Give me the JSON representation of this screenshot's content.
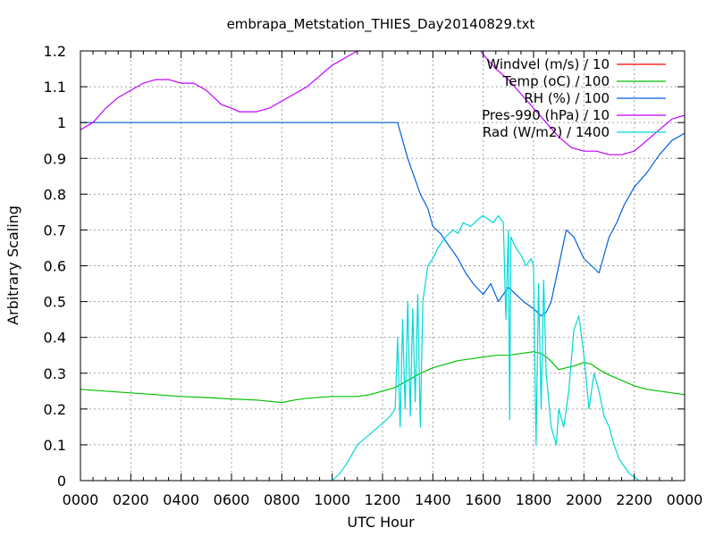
{
  "chart_data": {
    "type": "line",
    "title": "embrapa_Metstation_THIES_Day20140829.txt",
    "xlabel": "UTC Hour",
    "ylabel": "Arbitrary Scaling",
    "xlim": [
      0,
      24
    ],
    "ylim": [
      0,
      1.2
    ],
    "grid": true,
    "legend_position": "top-right",
    "x_ticks": [
      {
        "value": 0,
        "label": "0000"
      },
      {
        "value": 2,
        "label": "0200"
      },
      {
        "value": 4,
        "label": "0400"
      },
      {
        "value": 6,
        "label": "0600"
      },
      {
        "value": 8,
        "label": "0800"
      },
      {
        "value": 10,
        "label": "1000"
      },
      {
        "value": 12,
        "label": "1200"
      },
      {
        "value": 14,
        "label": "1400"
      },
      {
        "value": 16,
        "label": "1600"
      },
      {
        "value": 18,
        "label": "1800"
      },
      {
        "value": 20,
        "label": "2000"
      },
      {
        "value": 22,
        "label": "2200"
      },
      {
        "value": 24,
        "label": "0000"
      }
    ],
    "y_ticks": [
      {
        "value": 0,
        "label": "0"
      },
      {
        "value": 0.1,
        "label": "0.1"
      },
      {
        "value": 0.2,
        "label": "0.2"
      },
      {
        "value": 0.3,
        "label": "0.3"
      },
      {
        "value": 0.4,
        "label": "0.4"
      },
      {
        "value": 0.5,
        "label": "0.5"
      },
      {
        "value": 0.6,
        "label": "0.6"
      },
      {
        "value": 0.7,
        "label": "0.7"
      },
      {
        "value": 0.8,
        "label": "0.8"
      },
      {
        "value": 0.9,
        "label": "0.9"
      },
      {
        "value": 1.0,
        "label": "1"
      },
      {
        "value": 1.1,
        "label": "1.1"
      },
      {
        "value": 1.2,
        "label": "1.2"
      }
    ],
    "series": [
      {
        "name": "Windvel (m/s) / 10",
        "color": "#ff0000",
        "x": [],
        "y": []
      },
      {
        "name": "Temp (oC) / 100",
        "color": "#00c000",
        "x": [
          0,
          1,
          2,
          3,
          4,
          5,
          6,
          7,
          8,
          8.5,
          9,
          10,
          11,
          11.5,
          12,
          12.5,
          13,
          13.5,
          14,
          14.5,
          15,
          15.5,
          16,
          16.5,
          17,
          17.5,
          18,
          18.3,
          18.6,
          19,
          19.3,
          19.6,
          20,
          20.3,
          20.6,
          21,
          21.5,
          22,
          22.5,
          23,
          24
        ],
        "y": [
          0.255,
          0.25,
          0.245,
          0.24,
          0.235,
          0.232,
          0.228,
          0.225,
          0.218,
          0.225,
          0.23,
          0.235,
          0.235,
          0.24,
          0.25,
          0.26,
          0.28,
          0.3,
          0.315,
          0.325,
          0.335,
          0.34,
          0.345,
          0.35,
          0.35,
          0.355,
          0.36,
          0.355,
          0.34,
          0.31,
          0.315,
          0.32,
          0.33,
          0.325,
          0.31,
          0.295,
          0.28,
          0.265,
          0.255,
          0.25,
          0.24
        ]
      },
      {
        "name": "RH (%) / 100",
        "color": "#0060e0",
        "x": [
          0,
          4,
          8,
          12,
          12.6,
          12.8,
          13,
          13.2,
          13.5,
          13.8,
          14,
          14.3,
          14.6,
          15,
          15.3,
          15.6,
          16,
          16.3,
          16.6,
          17,
          17.3,
          17.6,
          18,
          18.3,
          18.5,
          18.7,
          19,
          19.3,
          19.6,
          20,
          20.3,
          20.6,
          20.8,
          21,
          21.3,
          21.6,
          22,
          22.5,
          23,
          23.5,
          24
        ],
        "y": [
          1.0,
          1.0,
          1.0,
          1.0,
          1.0,
          0.95,
          0.9,
          0.86,
          0.8,
          0.76,
          0.71,
          0.69,
          0.66,
          0.62,
          0.58,
          0.55,
          0.52,
          0.55,
          0.5,
          0.54,
          0.52,
          0.5,
          0.48,
          0.46,
          0.47,
          0.5,
          0.6,
          0.7,
          0.68,
          0.62,
          0.6,
          0.58,
          0.63,
          0.68,
          0.72,
          0.77,
          0.82,
          0.86,
          0.91,
          0.95,
          0.97
        ]
      },
      {
        "name": "Pres-990 (hPa) / 10",
        "color": "#c000ff",
        "x": [
          0,
          0.5,
          1,
          1.5,
          2,
          2.5,
          3,
          3.5,
          4,
          4.5,
          5,
          5.3,
          5.6,
          6,
          6.3,
          6.6,
          7,
          7.5,
          8,
          8.5,
          9,
          9.5,
          10,
          10.5,
          11,
          11.3,
          15.8,
          16,
          16.5,
          17,
          17.5,
          18,
          18.5,
          19,
          19.5,
          20,
          20.5,
          21,
          21.5,
          22,
          22.5,
          23,
          23.5,
          24
        ],
        "y": [
          0.98,
          1.0,
          1.04,
          1.07,
          1.09,
          1.11,
          1.12,
          1.12,
          1.11,
          1.11,
          1.09,
          1.07,
          1.05,
          1.04,
          1.03,
          1.03,
          1.03,
          1.04,
          1.06,
          1.08,
          1.1,
          1.13,
          1.16,
          1.18,
          1.2,
          1.21,
          1.21,
          1.19,
          1.15,
          1.12,
          1.08,
          1.04,
          1.0,
          0.96,
          0.93,
          0.92,
          0.92,
          0.91,
          0.91,
          0.92,
          0.95,
          0.98,
          1.01,
          1.02
        ]
      },
      {
        "name": "Rad (W/m2) / 1400",
        "color": "#00d8d8",
        "x": [
          10,
          10.3,
          10.6,
          11,
          11.5,
          12,
          12.3,
          12.5,
          12.6,
          12.7,
          12.8,
          12.9,
          13,
          13.1,
          13.2,
          13.3,
          13.4,
          13.5,
          13.6,
          13.7,
          13.8,
          14,
          14.2,
          14.5,
          14.8,
          15,
          15.2,
          15.5,
          15.8,
          16,
          16.2,
          16.4,
          16.6,
          16.8,
          16.9,
          17,
          17.05,
          17.1,
          17.3,
          17.5,
          17.7,
          17.9,
          18,
          18.1,
          18.2,
          18.3,
          18.4,
          18.5,
          18.7,
          18.9,
          19,
          19.2,
          19.4,
          19.6,
          19.8,
          20,
          20.2,
          20.4,
          20.6,
          20.8,
          21,
          21.2,
          21.4,
          21.6,
          21.8,
          22,
          22.2
        ],
        "y": [
          0.0,
          0.02,
          0.05,
          0.1,
          0.13,
          0.16,
          0.18,
          0.2,
          0.4,
          0.15,
          0.45,
          0.2,
          0.5,
          0.18,
          0.48,
          0.22,
          0.52,
          0.15,
          0.5,
          0.55,
          0.6,
          0.62,
          0.65,
          0.68,
          0.7,
          0.69,
          0.72,
          0.71,
          0.73,
          0.74,
          0.73,
          0.72,
          0.74,
          0.72,
          0.45,
          0.7,
          0.17,
          0.68,
          0.65,
          0.63,
          0.6,
          0.62,
          0.6,
          0.1,
          0.55,
          0.2,
          0.56,
          0.3,
          0.15,
          0.1,
          0.2,
          0.15,
          0.25,
          0.42,
          0.46,
          0.35,
          0.2,
          0.3,
          0.25,
          0.18,
          0.15,
          0.1,
          0.06,
          0.04,
          0.02,
          0.01,
          0.0
        ]
      }
    ]
  }
}
